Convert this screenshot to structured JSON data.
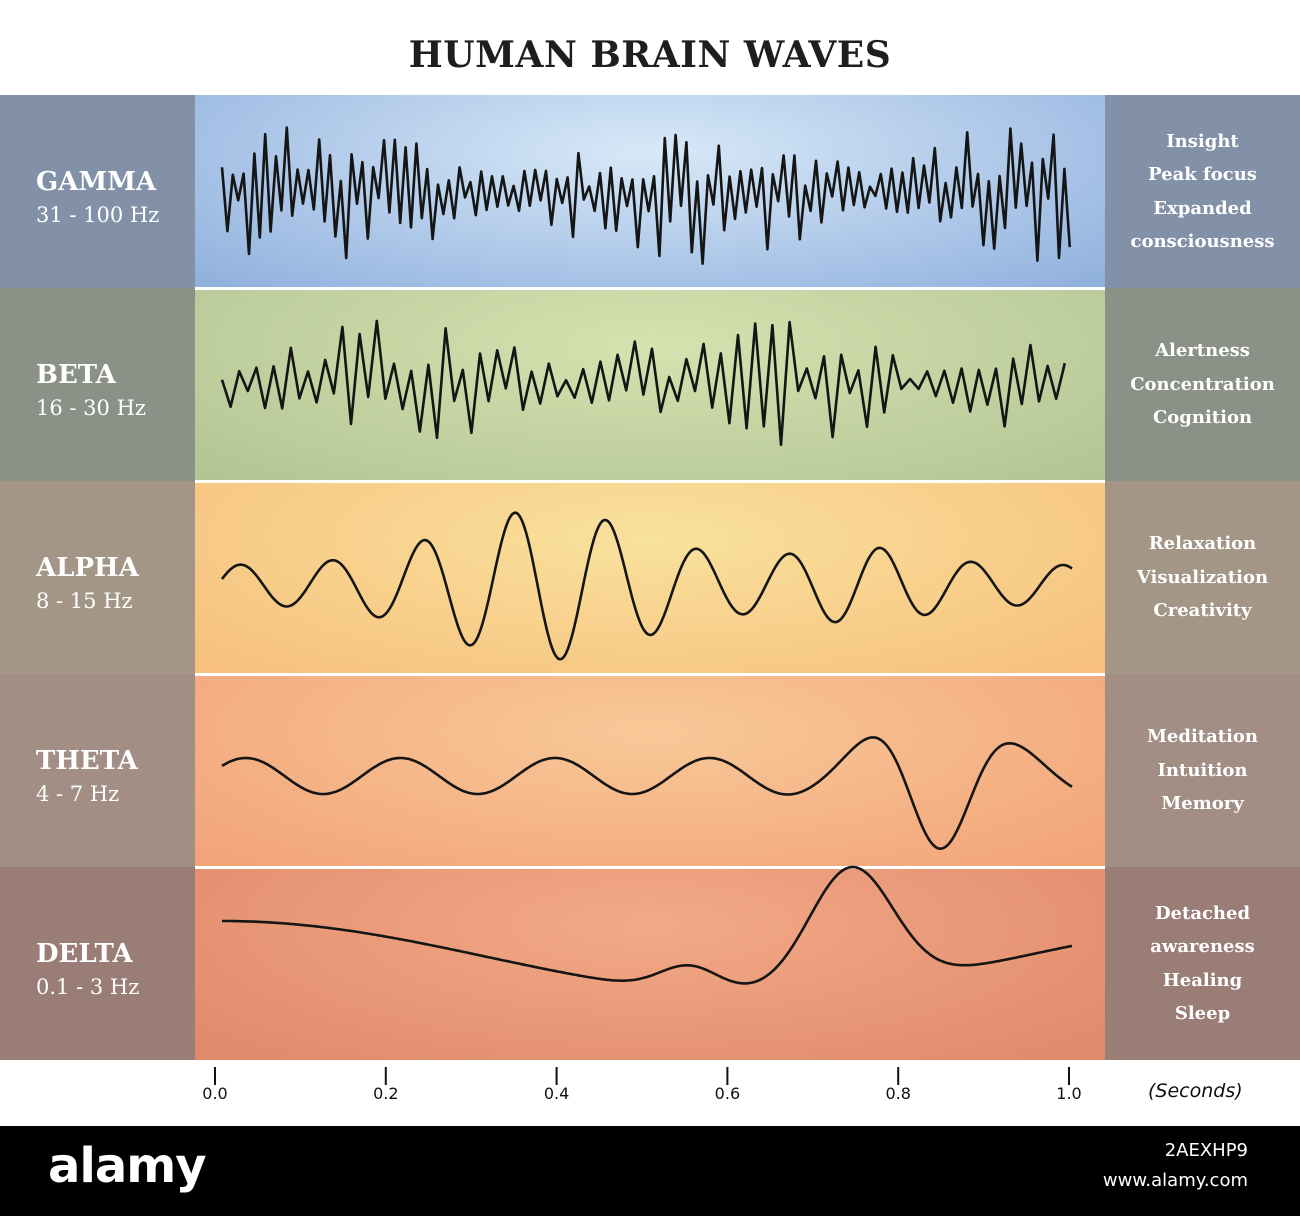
{
  "title": "HUMAN BRAIN WAVES",
  "bands": [
    {
      "name": "GAMMA",
      "range": "31 - 100 Hz",
      "effects": [
        "Insight",
        "Peak focus",
        "Expanded",
        "consciousness"
      ],
      "colors": {
        "side": "#8391a8",
        "mid_center": "#d8e9f8",
        "mid_edge": "#92b2de"
      }
    },
    {
      "name": "BETA",
      "range": "16 - 30 Hz",
      "effects": [
        "Alertness",
        "Concentration",
        "Cognition"
      ],
      "colors": {
        "side": "#8b9187",
        "mid_center": "#d6e2b0",
        "mid_edge": "#b4c595"
      }
    },
    {
      "name": "ALPHA",
      "range": "8 - 15 Hz",
      "effects": [
        "Relaxation",
        "Visualization",
        "Creativity"
      ],
      "colors": {
        "side": "#a49687",
        "mid_center": "#f8e29c",
        "mid_edge": "#f7c07e"
      }
    },
    {
      "name": "THETA",
      "range": "4 - 7 Hz",
      "effects": [
        "Meditation",
        "Intuition",
        "Memory"
      ],
      "colors": {
        "side": "#a38e86",
        "mid_center": "#f8c998",
        "mid_edge": "#f2a479"
      }
    },
    {
      "name": "DELTA",
      "range": "0.1 - 3 Hz",
      "effects": [
        "Detached",
        "awareness",
        "Healing",
        "Sleep"
      ],
      "colors": {
        "side": "#9b7d77",
        "mid_center": "#f3aa86",
        "mid_edge": "#e08a6c"
      }
    }
  ],
  "axis": {
    "ticks": [
      "0.0",
      "0.2",
      "0.4",
      "0.6",
      "0.8",
      "1.0"
    ],
    "unit_label": "(Seconds)"
  },
  "footer": {
    "logo": "alamy",
    "image_id": "2AEXHP9",
    "url": "www.alamy.com"
  }
}
